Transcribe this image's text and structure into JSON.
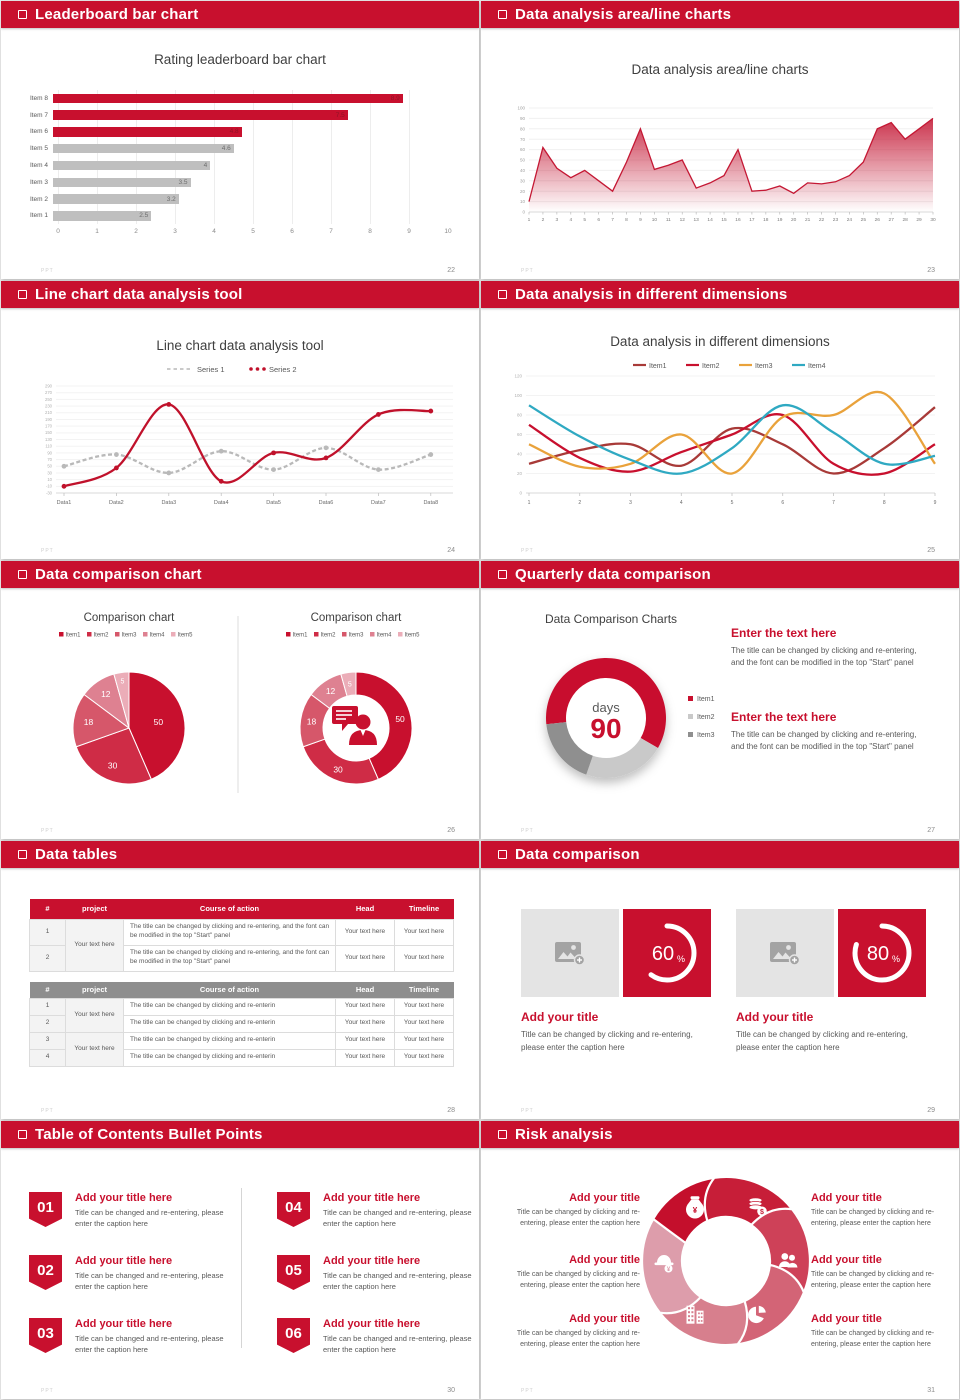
{
  "page": {
    "bg": "#e9e9e9",
    "footer_logo": "PPT",
    "accent": "#c8102e"
  },
  "slides": [
    {
      "id": "leaderboard",
      "header": "Leaderboard bar chart",
      "page_no": "22",
      "chart": {
        "type": "bar",
        "title": "Rating leaderboard bar chart",
        "categories": [
          "Item 8",
          "Item 7",
          "Item 6",
          "Item 5",
          "Item 4",
          "Item 3",
          "Item 2",
          "Item 1"
        ],
        "values": [
          8.9,
          7.5,
          4.8,
          4.6,
          4,
          3.5,
          3.2,
          2.5
        ],
        "colors": [
          "#c8102e",
          "#c8102e",
          "#c8102e",
          "#bfbfbf",
          "#bfbfbf",
          "#bfbfbf",
          "#bfbfbf",
          "#bfbfbf"
        ],
        "label_colors": [
          "#8f1326",
          "#8f1326",
          "#8f1326",
          "#6e6e6e",
          "#6e6e6e",
          "#6e6e6e",
          "#6e6e6e",
          "#6e6e6e"
        ],
        "xlim": [
          0,
          10
        ],
        "x_ticks": [
          0,
          1,
          2,
          3,
          4,
          5,
          6,
          7,
          8,
          9,
          10
        ]
      }
    },
    {
      "id": "area",
      "header": "Data analysis area/line charts",
      "page_no": "23",
      "chart": {
        "type": "area",
        "title": "Data analysis area/line charts",
        "x_ticks": [
          1,
          2,
          3,
          4,
          5,
          6,
          7,
          8,
          9,
          10,
          11,
          12,
          13,
          14,
          15,
          16,
          17,
          18,
          19,
          20,
          21,
          22,
          23,
          24,
          25,
          26,
          27,
          28,
          29,
          30
        ],
        "values": [
          10,
          62,
          42,
          33,
          40,
          30,
          20,
          48,
          80,
          41,
          45,
          50,
          23,
          28,
          35,
          60,
          20,
          21,
          25,
          18,
          28,
          27,
          29,
          35,
          48,
          80,
          86,
          70,
          80,
          90
        ],
        "ylim": [
          0,
          100
        ],
        "y_ticks": [
          0,
          10,
          20,
          30,
          40,
          50,
          60,
          70,
          80,
          90,
          100
        ],
        "line_color": "#c41834"
      }
    },
    {
      "id": "linetool",
      "header": "Line chart data analysis tool",
      "page_no": "24",
      "chart": {
        "type": "line",
        "title": "Line chart data analysis tool",
        "categories": [
          "Data1",
          "Data2",
          "Data3",
          "Data4",
          "Data5",
          "Data6",
          "Data7",
          "Data8"
        ],
        "series": [
          {
            "name": "Series 1",
            "color": "#b9b9b9",
            "style": "dashed",
            "values": [
              50,
              85,
              30,
              95,
              40,
              105,
              40,
              85
            ]
          },
          {
            "name": "Series 2",
            "color": "#c0112b",
            "style": "solid",
            "values": [
              -10,
              45,
              235,
              5,
              90,
              75,
              205,
              215
            ]
          }
        ],
        "ylim": [
          -30,
          290
        ],
        "y_step": 20
      }
    },
    {
      "id": "dimensions",
      "header": "Data analysis in different dimensions",
      "page_no": "25",
      "chart": {
        "type": "line",
        "title": "Data analysis in different dimensions",
        "x_ticks": [
          1,
          2,
          3,
          4,
          5,
          6,
          7,
          8,
          9
        ],
        "series": [
          {
            "name": "Item1",
            "color": "#a83a38",
            "values": [
              30,
              44,
              50,
              28,
              66,
              50,
              20,
              46,
              88
            ]
          },
          {
            "name": "Item2",
            "color": "#c8102e",
            "values": [
              70,
              36,
              22,
              42,
              60,
              80,
              30,
              20,
              50
            ]
          },
          {
            "name": "Item3",
            "color": "#e9a23b",
            "values": [
              50,
              27,
              30,
              60,
              20,
              78,
              80,
              102,
              30
            ]
          },
          {
            "name": "Item4",
            "color": "#2fa9c2",
            "values": [
              90,
              58,
              34,
              20,
              46,
              90,
              62,
              30,
              38
            ]
          }
        ],
        "ylim": [
          0,
          120
        ],
        "y_step": 20
      }
    },
    {
      "id": "pies",
      "header": "Data comparison chart",
      "page_no": "26",
      "charts": [
        {
          "type": "pie",
          "title": "Comparison chart",
          "labels": [
            "Item1",
            "Item2",
            "Item3",
            "Item4",
            "Item5"
          ],
          "values": [
            50,
            30,
            18,
            12,
            5
          ],
          "colors": [
            "#c8102e",
            "#cf2c46",
            "#d6576a",
            "#de8191",
            "#ebadb8"
          ]
        },
        {
          "type": "donut",
          "title": "Comparison chart",
          "labels": [
            "Item1",
            "Item2",
            "Item3",
            "Item4",
            "Item5"
          ],
          "values": [
            50,
            30,
            18,
            12,
            5
          ],
          "colors": [
            "#c8102e",
            "#cf2c46",
            "#d6576a",
            "#de8191",
            "#ebadb8"
          ],
          "center_icon": "presenter-icon"
        }
      ]
    },
    {
      "id": "quarterly",
      "header": "Quarterly data comparison",
      "page_no": "27",
      "chart": {
        "type": "donut",
        "title": "Data Comparison Charts",
        "labels": [
          "Item1",
          "Item2",
          "Item3"
        ],
        "values": [
          60,
          22,
          18
        ],
        "colors": [
          "#c8102e",
          "#c9c9c9",
          "#8f8f8f"
        ],
        "start_angle": -96,
        "center_label": "days",
        "center_value": "90"
      },
      "blocks": [
        {
          "heading": "Enter the text here",
          "body": "The title can be changed by clicking and re-entering, and the font can be modified in the top \"Start\" panel"
        },
        {
          "heading": "Enter the text here",
          "body": "The title can be changed by clicking and re-entering, and the font can be modified in the top \"Start\" panel"
        }
      ]
    },
    {
      "id": "tables",
      "header": "Data tables",
      "page_no": "28",
      "tables": [
        {
          "style": "red",
          "columns": [
            "#",
            "project",
            "Course of action",
            "Head",
            "Timeline"
          ],
          "merge": 2,
          "rows": [
            {
              "num": "1",
              "project": "Your text here",
              "course": "The title can be changed by clicking and re-entering, and the font can be modified in the top \"Start\" panel",
              "head": "Your text here",
              "timeline": "Your text here"
            },
            {
              "num": "2",
              "project": "",
              "course": "The title can be changed by clicking and re-entering, and the font can be modified in the top \"Start\" panel",
              "head": "Your text here",
              "timeline": "Your text here"
            }
          ]
        },
        {
          "style": "gray",
          "columns": [
            "#",
            "project",
            "Course of action",
            "Head",
            "Timeline"
          ],
          "merge": 2,
          "rows": [
            {
              "num": "1",
              "project": "Your text here",
              "course": "The title can be changed by clicking and re-enterin",
              "head": "Your text here",
              "timeline": "Your text here"
            },
            {
              "num": "2",
              "project": "",
              "course": "The title can be changed by clicking and re-enterin",
              "head": "Your text here",
              "timeline": "Your text here"
            },
            {
              "num": "3",
              "project": "Your text here",
              "course": "The title can be changed by clicking and re-enterin",
              "head": "Your text here",
              "timeline": "Your text here"
            },
            {
              "num": "4",
              "project": "",
              "course": "The title can be changed by clicking and re-enterin",
              "head": "Your text here",
              "timeline": "Your text here"
            }
          ]
        }
      ]
    },
    {
      "id": "cards",
      "header": "Data comparison",
      "page_no": "29",
      "cards": [
        {
          "percent": 60,
          "title": "Add your title",
          "caption": "Title can be changed by clicking and re-entering, please enter the caption here"
        },
        {
          "percent": 80,
          "title": "Add your title",
          "caption": "Title can be changed by clicking and re-entering, please enter the caption here"
        }
      ]
    },
    {
      "id": "toc",
      "header": "Table of Contents Bullet Points",
      "page_no": "30",
      "items": [
        {
          "num": "01",
          "title": "Add your title here",
          "caption": "Title can be changed and re-entering, please enter the caption here"
        },
        {
          "num": "02",
          "title": "Add your title here",
          "caption": "Title can be changed and re-entering, please enter the caption here"
        },
        {
          "num": "03",
          "title": "Add your title here",
          "caption": "Title can be changed and re-entering, please enter the caption here"
        },
        {
          "num": "04",
          "title": "Add your title here",
          "caption": "Title can be changed and re-entering, please enter the caption here"
        },
        {
          "num": "05",
          "title": "Add your title here",
          "caption": "Title can be changed and re-entering, please enter the caption here"
        },
        {
          "num": "06",
          "title": "Add your title here",
          "caption": "Title can be changed and re-entering, please enter the caption here"
        }
      ]
    },
    {
      "id": "risk",
      "header": "Risk analysis",
      "page_no": "31",
      "wheel": {
        "colors": [
          "#c40f2c",
          "#c71e38",
          "#ce4158",
          "#d36476",
          "#d77f8d",
          "#dd9dab"
        ],
        "icons": [
          "money-bag-icon",
          "coins-icon",
          "team-icon",
          "pie-chart-icon",
          "building-icon",
          "helmet-icon"
        ]
      },
      "blocks": [
        {
          "title": "Add your title",
          "caption": "Title can be changed by clicking and re-entering, please enter the caption here"
        },
        {
          "title": "Add your title",
          "caption": "Title can be changed by clicking and re-entering, please enter the caption here"
        },
        {
          "title": "Add your title",
          "caption": "Title can be changed by clicking and re-entering, please enter the caption here"
        },
        {
          "title": "Add your title",
          "caption": "Title can be changed by clicking and re-entering, please enter the caption here"
        },
        {
          "title": "Add your title",
          "caption": "Title can be changed by clicking and re-entering, please enter the caption here"
        },
        {
          "title": "Add your title",
          "caption": "Title can be changed by clicking and re-entering, please enter the caption here"
        }
      ]
    }
  ]
}
